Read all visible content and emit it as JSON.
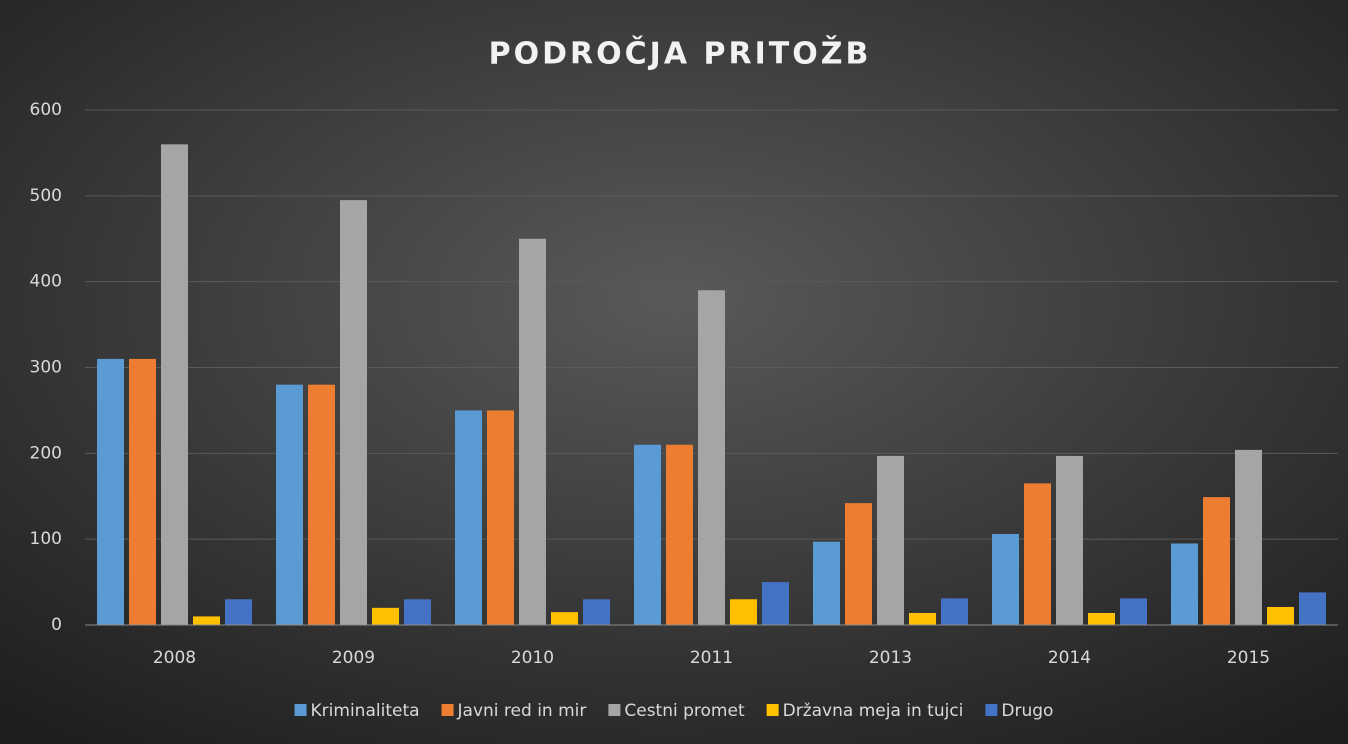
{
  "chart_data": {
    "type": "bar",
    "title": "PODROČJA PRITOŽB",
    "categories": [
      "2008",
      "2009",
      "2010",
      "2011",
      "2013",
      "2014",
      "2015"
    ],
    "series": [
      {
        "name": "Kriminaliteta",
        "color": "#5b9bd5",
        "values": [
          310,
          280,
          250,
          210,
          97,
          106,
          95
        ]
      },
      {
        "name": "Javni red in mir",
        "color": "#ed7d31",
        "values": [
          310,
          280,
          250,
          210,
          142,
          165,
          149
        ]
      },
      {
        "name": "Cestni promet",
        "color": "#a5a5a5",
        "values": [
          560,
          495,
          450,
          390,
          197,
          197,
          204
        ]
      },
      {
        "name": "Državna meja in tujci",
        "color": "#ffc000",
        "values": [
          10,
          20,
          15,
          30,
          14,
          14,
          21
        ]
      },
      {
        "name": "Drugo",
        "color": "#4472c4",
        "values": [
          30,
          30,
          30,
          50,
          31,
          31,
          38
        ]
      }
    ],
    "ylim": [
      0,
      600
    ],
    "yticks": [
      0,
      100,
      200,
      300,
      400,
      500,
      600
    ],
    "grid": true,
    "legend": "bottom"
  }
}
